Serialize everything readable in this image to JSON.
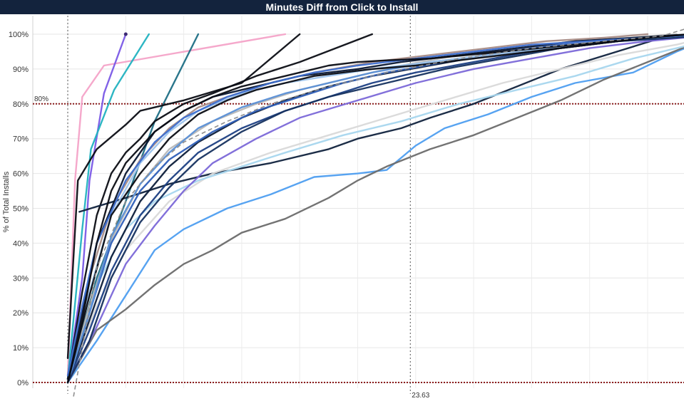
{
  "chart_data": {
    "type": "line",
    "title": "Minutes Diff from Click to Install",
    "ylabel": "% of Total Installs",
    "xlabel": "",
    "yticks": [
      "0%",
      "10%",
      "20%",
      "30%",
      "40%",
      "50%",
      "60%",
      "70%",
      "80%",
      "90%",
      "100%"
    ],
    "ylim": [
      0,
      100
    ],
    "xlim": [
      -2,
      43
    ],
    "grid": true,
    "legend": "none",
    "reference_lines": {
      "horizontal": [
        {
          "value": 80,
          "label": "80%",
          "color": "#8b1c1c"
        },
        {
          "value": 0,
          "label": "",
          "color": "#8b1c1c"
        }
      ],
      "vertical": [
        {
          "value": 0,
          "label": ""
        },
        {
          "value": 23.63,
          "label": "23.63"
        }
      ]
    },
    "trend_line": {
      "color": "#8f8f8f",
      "x": [
        0.4,
        2,
        4,
        6,
        8,
        11,
        14,
        18,
        22,
        27,
        32,
        37,
        41,
        43
      ],
      "y": [
        -4,
        33,
        52,
        62,
        69,
        75,
        80,
        85,
        89,
        93,
        96,
        98,
        99.5,
        102
      ]
    },
    "series": [
      {
        "color": "#f4a3c8",
        "x": [
          0,
          0.5,
          1,
          2.5,
          15
        ],
        "y": [
          2,
          58,
          82,
          91,
          100
        ]
      },
      {
        "color": "#7a5ae6",
        "x": [
          0,
          1,
          1.5,
          2.5,
          4
        ],
        "y": [
          1,
          30,
          58,
          83,
          100
        ]
      },
      {
        "color": "#22b2c0",
        "x": [
          0,
          1,
          1.6,
          3.2,
          5.6
        ],
        "y": [
          1,
          44,
          67,
          84,
          100
        ]
      },
      {
        "color": "#1f6f85",
        "x": [
          0,
          2,
          4,
          6,
          9
        ],
        "y": [
          0,
          30,
          52,
          75,
          100
        ]
      },
      {
        "color": "#0b0d14",
        "x": [
          0,
          0.7,
          2,
          4,
          5,
          8,
          12,
          16
        ],
        "y": [
          7,
          58,
          67,
          74,
          78,
          81,
          86,
          100
        ]
      },
      {
        "color": "#0b0d14",
        "x": [
          0,
          1,
          2,
          3,
          4,
          5,
          6,
          8,
          10,
          13,
          16,
          21
        ],
        "y": [
          1,
          26,
          48,
          60,
          66,
          70,
          75,
          80,
          83,
          88,
          92,
          100
        ]
      },
      {
        "color": "#10223d",
        "x": [
          0.8,
          4,
          7,
          10,
          14,
          18,
          20,
          23,
          25,
          28,
          34,
          41
        ],
        "y": [
          49,
          53,
          57,
          60,
          63,
          67,
          70,
          73,
          76,
          80,
          90,
          99
        ]
      },
      {
        "color": "#4e9ef0",
        "x": [
          0,
          2,
          4,
          6,
          8,
          11,
          14,
          17,
          20,
          22,
          24,
          26,
          29,
          32,
          35,
          39,
          42,
          45
        ],
        "y": [
          0,
          12,
          25,
          38,
          44,
          50,
          54,
          59,
          60,
          61,
          68,
          73,
          77,
          82,
          86,
          89,
          95,
          100
        ]
      },
      {
        "color": "#6b6b6b",
        "x": [
          0,
          2,
          4,
          6,
          8,
          10,
          12,
          15,
          18,
          20,
          22,
          25,
          28,
          31,
          34,
          37,
          40,
          43,
          45
        ],
        "y": [
          0,
          15,
          21,
          28,
          34,
          38,
          43,
          47,
          53,
          58,
          62,
          67,
          71,
          76,
          81,
          87,
          92,
          97,
          100
        ]
      },
      {
        "color": "#d9d9d9",
        "x": [
          0,
          2,
          4,
          7,
          10,
          14,
          18,
          22,
          26,
          30,
          34,
          38,
          42,
          45
        ],
        "y": [
          0,
          22,
          38,
          52,
          60,
          66,
          71,
          76,
          81,
          86,
          90,
          94,
          97,
          100
        ]
      },
      {
        "color": "#a7d6ee",
        "x": [
          0,
          2,
          4,
          6,
          9,
          12,
          15,
          19,
          23,
          27,
          31,
          35,
          39,
          43,
          45
        ],
        "y": [
          0,
          28,
          44,
          52,
          58,
          62,
          66,
          71,
          75,
          80,
          84,
          88,
          93,
          97,
          100
        ]
      },
      {
        "color": "#a88c86",
        "x": [
          0,
          1.5,
          3,
          5,
          7,
          9,
          11,
          14,
          17,
          21,
          25,
          29,
          33,
          37,
          40
        ],
        "y": [
          1,
          30,
          50,
          64,
          73,
          79,
          82,
          86,
          89,
          92,
          94,
          96,
          98,
          99,
          100
        ]
      },
      {
        "color": "#b8b8b8",
        "x": [
          0,
          1.5,
          3,
          5,
          7,
          10,
          13,
          16,
          19,
          23,
          27,
          31,
          35,
          39,
          42
        ],
        "y": [
          0,
          22,
          41,
          57,
          67,
          75,
          80,
          84,
          87,
          91,
          94,
          96,
          98,
          99,
          100
        ]
      },
      {
        "color": "#0d1e3a",
        "x": [
          0,
          1.5,
          3,
          5,
          7,
          9,
          12,
          15,
          18,
          21,
          25,
          29,
          33,
          37,
          41,
          45
        ],
        "y": [
          0,
          18,
          36,
          52,
          62,
          69,
          76,
          81,
          85,
          88,
          91,
          94,
          96,
          98,
          99,
          100
        ]
      },
      {
        "color": "#1c3f83",
        "x": [
          0,
          1.5,
          3,
          5,
          7,
          9,
          12,
          15,
          18,
          21,
          24,
          28,
          32,
          36,
          40,
          45
        ],
        "y": [
          0,
          15,
          32,
          48,
          58,
          66,
          73,
          78,
          82,
          86,
          89,
          92,
          95,
          97,
          99,
          100
        ]
      },
      {
        "color": "#2f5fb8",
        "x": [
          0,
          1.5,
          3,
          5,
          7,
          10,
          13,
          16,
          19,
          22,
          26,
          30,
          34,
          38,
          42,
          45
        ],
        "y": [
          0,
          20,
          40,
          55,
          64,
          72,
          78,
          82,
          86,
          89,
          92,
          95,
          97,
          98,
          99,
          100
        ]
      },
      {
        "color": "#7b68d8",
        "x": [
          0,
          2,
          4,
          6,
          8,
          10,
          13,
          16,
          20,
          24,
          28,
          32,
          36,
          40,
          45
        ],
        "y": [
          0,
          16,
          34,
          45,
          55,
          63,
          70,
          76,
          81,
          86,
          90,
          93,
          96,
          98,
          100
        ]
      },
      {
        "color": "#5a8fd6",
        "x": [
          0,
          1.5,
          3,
          5,
          7,
          9,
          12,
          15,
          18,
          21,
          25,
          29,
          33,
          37,
          41,
          45
        ],
        "y": [
          0,
          20,
          42,
          57,
          66,
          73,
          79,
          83,
          86,
          89,
          92,
          94,
          96,
          98,
          99,
          100
        ]
      },
      {
        "color": "#9ec4ec",
        "x": [
          0,
          1.5,
          3,
          5,
          7,
          9,
          12,
          15,
          18,
          21,
          25,
          29,
          33,
          37,
          41,
          45
        ],
        "y": [
          0,
          26,
          48,
          63,
          72,
          78,
          83,
          86,
          88,
          90,
          92,
          94,
          96,
          98,
          99,
          100
        ]
      },
      {
        "color": "#0a1731",
        "x": [
          0,
          1,
          2,
          4,
          6,
          8,
          10,
          12,
          14,
          16,
          18,
          20,
          23,
          27,
          31,
          35,
          39,
          43
        ],
        "y": [
          1,
          20,
          40,
          60,
          72,
          78,
          82,
          84,
          86,
          88,
          89,
          90,
          92,
          94,
          96,
          98,
          99,
          100
        ]
      },
      {
        "color": "#3d6fd0",
        "x": [
          0,
          1,
          2,
          4,
          6,
          8,
          11,
          14,
          17,
          20,
          24,
          28,
          32,
          36,
          40,
          44
        ],
        "y": [
          2,
          22,
          40,
          58,
          69,
          76,
          82,
          86,
          89,
          91,
          93,
          95,
          97,
          98,
          99,
          100
        ]
      },
      {
        "color": "#16315f",
        "x": [
          0,
          1.5,
          3,
          5,
          7,
          9,
          12,
          15,
          18,
          22,
          26,
          30,
          34,
          38,
          42,
          45
        ],
        "y": [
          0,
          12,
          30,
          46,
          56,
          64,
          72,
          78,
          82,
          86,
          90,
          93,
          96,
          98,
          99,
          100
        ]
      },
      {
        "color": "#0b0d14",
        "x": [
          0,
          1.5,
          3,
          5,
          7,
          9,
          11,
          13,
          15,
          17,
          19,
          21,
          24,
          28,
          32,
          36,
          40,
          43
        ],
        "y": [
          0,
          25,
          48,
          60,
          70,
          77,
          81,
          84,
          86,
          88,
          89,
          90,
          91,
          93,
          95,
          97,
          99,
          100
        ]
      },
      {
        "color": "#0b0d14",
        "x": [
          0,
          1,
          2,
          3,
          4,
          6,
          8,
          10,
          12,
          14,
          16,
          18,
          20,
          22,
          25,
          30,
          35,
          40,
          43
        ],
        "y": [
          0,
          18,
          40,
          55,
          63,
          72,
          78,
          82,
          85,
          87,
          89,
          91,
          92,
          92.5,
          93,
          95,
          97,
          99,
          100
        ]
      }
    ]
  }
}
